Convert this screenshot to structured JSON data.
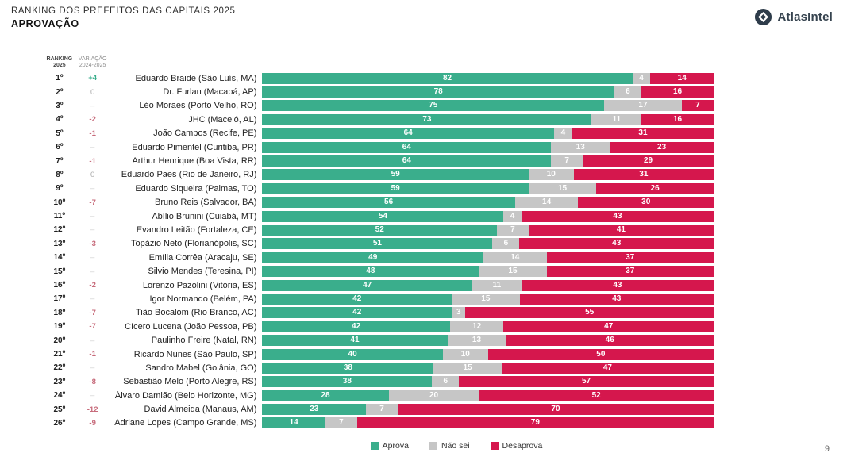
{
  "header": {
    "title": "RANKING DOS PREFEITOS DAS CAPITAIS 2025",
    "subtitle": "APROVAÇÃO",
    "brand": "AtlasIntel"
  },
  "columns": {
    "ranking": {
      "line1": "RANKING",
      "line2": "2025"
    },
    "variation": {
      "line1": "VARIAÇÃO",
      "line2": "2024-2025"
    }
  },
  "colors": {
    "aprova": "#3aae8c",
    "nao_sei": "#c6c6c6",
    "desaprova": "#d5174d",
    "variation_up": "#3aae8c",
    "variation_down": "#c76b7b",
    "brand_navy": "#2e3c4a"
  },
  "chart_data": {
    "type": "bar",
    "orientation": "horizontal",
    "stacked": true,
    "title": "RANKING DOS PREFEITOS DAS CAPITAIS 2025 — APROVAÇÃO",
    "legend_position": "bottom",
    "legend": [
      {
        "label": "Aprova",
        "color": "#3aae8c"
      },
      {
        "label": "Não sei",
        "color": "#c6c6c6"
      },
      {
        "label": "Desaprova",
        "color": "#d5174d"
      }
    ],
    "rows": [
      {
        "rank": "1º",
        "variation": "+4",
        "variation_type": "up",
        "name": "Eduardo Braide (São Luís, MA)",
        "aprova": 82,
        "nao_sei": 4,
        "desaprova": 14
      },
      {
        "rank": "2º",
        "variation": "0",
        "variation_type": "zero",
        "name": "Dr. Furlan (Macapá, AP)",
        "aprova": 78,
        "nao_sei": 6,
        "desaprova": 16
      },
      {
        "rank": "3º",
        "variation": "–",
        "variation_type": "none",
        "name": "Léo Moraes (Porto Velho, RO)",
        "aprova": 75,
        "nao_sei": 17,
        "desaprova": 7
      },
      {
        "rank": "4º",
        "variation": "-2",
        "variation_type": "down",
        "name": "JHC (Maceió, AL)",
        "aprova": 73,
        "nao_sei": 11,
        "desaprova": 16
      },
      {
        "rank": "5º",
        "variation": "-1",
        "variation_type": "down",
        "name": "João Campos (Recife, PE)",
        "aprova": 64,
        "nao_sei": 4,
        "desaprova": 31
      },
      {
        "rank": "6º",
        "variation": "–",
        "variation_type": "none",
        "name": "Eduardo Pimentel (Curitiba, PR)",
        "aprova": 64,
        "nao_sei": 13,
        "desaprova": 23
      },
      {
        "rank": "7º",
        "variation": "-1",
        "variation_type": "down",
        "name": "Arthur Henrique (Boa Vista, RR)",
        "aprova": 64,
        "nao_sei": 7,
        "desaprova": 29
      },
      {
        "rank": "8º",
        "variation": "0",
        "variation_type": "zero",
        "name": "Eduardo Paes (Rio de Janeiro, RJ)",
        "aprova": 59,
        "nao_sei": 10,
        "desaprova": 31
      },
      {
        "rank": "9º",
        "variation": "–",
        "variation_type": "none",
        "name": "Eduardo Siqueira (Palmas, TO)",
        "aprova": 59,
        "nao_sei": 15,
        "desaprova": 26
      },
      {
        "rank": "10º",
        "variation": "-7",
        "variation_type": "down",
        "name": "Bruno Reis (Salvador, BA)",
        "aprova": 56,
        "nao_sei": 14,
        "desaprova": 30
      },
      {
        "rank": "11º",
        "variation": "–",
        "variation_type": "none",
        "name": "Abílio Brunini (Cuiabá, MT)",
        "aprova": 54,
        "nao_sei": 4,
        "desaprova": 43
      },
      {
        "rank": "12º",
        "variation": "–",
        "variation_type": "none",
        "name": "Evandro Leitão (Fortaleza, CE)",
        "aprova": 52,
        "nao_sei": 7,
        "desaprova": 41
      },
      {
        "rank": "13º",
        "variation": "-3",
        "variation_type": "down",
        "name": "Topázio Neto (Florianópolis, SC)",
        "aprova": 51,
        "nao_sei": 6,
        "desaprova": 43
      },
      {
        "rank": "14º",
        "variation": "–",
        "variation_type": "none",
        "name": "Emília Corrêa (Aracaju, SE)",
        "aprova": 49,
        "nao_sei": 14,
        "desaprova": 37
      },
      {
        "rank": "15º",
        "variation": "–",
        "variation_type": "none",
        "name": "Silvio Mendes (Teresina, PI)",
        "aprova": 48,
        "nao_sei": 15,
        "desaprova": 37
      },
      {
        "rank": "16º",
        "variation": "-2",
        "variation_type": "down",
        "name": "Lorenzo Pazolini (Vitória, ES)",
        "aprova": 47,
        "nao_sei": 11,
        "desaprova": 43
      },
      {
        "rank": "17º",
        "variation": "–",
        "variation_type": "none",
        "name": "Igor Normando (Belém, PA)",
        "aprova": 42,
        "nao_sei": 15,
        "desaprova": 43
      },
      {
        "rank": "18º",
        "variation": "-7",
        "variation_type": "down",
        "name": "Tião Bocalom (Rio Branco, AC)",
        "aprova": 42,
        "nao_sei": 3,
        "desaprova": 55
      },
      {
        "rank": "19º",
        "variation": "-7",
        "variation_type": "down",
        "name": "Cícero Lucena (João Pessoa, PB)",
        "aprova": 42,
        "nao_sei": 12,
        "desaprova": 47
      },
      {
        "rank": "20º",
        "variation": "–",
        "variation_type": "none",
        "name": "Paulinho Freire (Natal, RN)",
        "aprova": 41,
        "nao_sei": 13,
        "desaprova": 46
      },
      {
        "rank": "21º",
        "variation": "-1",
        "variation_type": "down",
        "name": "Ricardo Nunes (São Paulo, SP)",
        "aprova": 40,
        "nao_sei": 10,
        "desaprova": 50
      },
      {
        "rank": "22º",
        "variation": "–",
        "variation_type": "none",
        "name": "Sandro Mabel (Goiânia, GO)",
        "aprova": 38,
        "nao_sei": 15,
        "desaprova": 47
      },
      {
        "rank": "23º",
        "variation": "-8",
        "variation_type": "down",
        "name": "Sebastião Melo (Porto Alegre, RS)",
        "aprova": 38,
        "nao_sei": 6,
        "desaprova": 57
      },
      {
        "rank": "24º",
        "variation": "–",
        "variation_type": "none",
        "name": "Álvaro Damião (Belo Horizonte, MG)",
        "aprova": 28,
        "nao_sei": 20,
        "desaprova": 52
      },
      {
        "rank": "25º",
        "variation": "-12",
        "variation_type": "down",
        "name": "David Almeida (Manaus, AM)",
        "aprova": 23,
        "nao_sei": 7,
        "desaprova": 70
      },
      {
        "rank": "26º",
        "variation": "-9",
        "variation_type": "down",
        "name": "Adriane Lopes (Campo Grande, MS)",
        "aprova": 14,
        "nao_sei": 7,
        "desaprova": 79
      }
    ]
  },
  "page_number": "9"
}
